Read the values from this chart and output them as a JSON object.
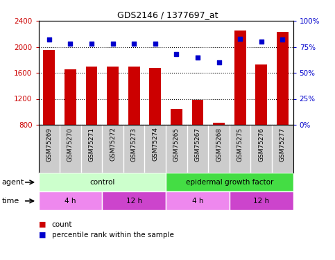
{
  "title": "GDS2146 / 1377697_at",
  "samples": [
    "GSM75269",
    "GSM75270",
    "GSM75271",
    "GSM75272",
    "GSM75273",
    "GSM75274",
    "GSM75265",
    "GSM75267",
    "GSM75268",
    "GSM75275",
    "GSM75276",
    "GSM75277"
  ],
  "counts": [
    1950,
    1650,
    1700,
    1700,
    1700,
    1670,
    1050,
    1180,
    830,
    2250,
    1730,
    2230
  ],
  "percentiles": [
    82,
    78,
    78,
    78,
    78,
    78,
    68,
    65,
    60,
    83,
    80,
    82
  ],
  "ylim_left": [
    800,
    2400
  ],
  "ylim_right": [
    0,
    100
  ],
  "yticks_left": [
    800,
    1200,
    1600,
    2000,
    2400
  ],
  "yticks_right": [
    0,
    25,
    50,
    75,
    100
  ],
  "bar_color": "#cc0000",
  "dot_color": "#0000cc",
  "bar_width": 0.55,
  "agent_groups": [
    {
      "label": "control",
      "start": 0,
      "end": 6,
      "color": "#ccffcc"
    },
    {
      "label": "epidermal growth factor",
      "start": 6,
      "end": 12,
      "color": "#44dd44"
    }
  ],
  "time_groups": [
    {
      "label": "4 h",
      "start": 0,
      "end": 3,
      "color": "#ee88ee"
    },
    {
      "label": "12 h",
      "start": 3,
      "end": 6,
      "color": "#cc44cc"
    },
    {
      "label": "4 h",
      "start": 6,
      "end": 9,
      "color": "#ee88ee"
    },
    {
      "label": "12 h",
      "start": 9,
      "end": 12,
      "color": "#cc44cc"
    }
  ],
  "left_tick_color": "#cc0000",
  "right_tick_color": "#0000cc",
  "sample_bg_color": "#cccccc",
  "sample_border_color": "#aaaaaa"
}
